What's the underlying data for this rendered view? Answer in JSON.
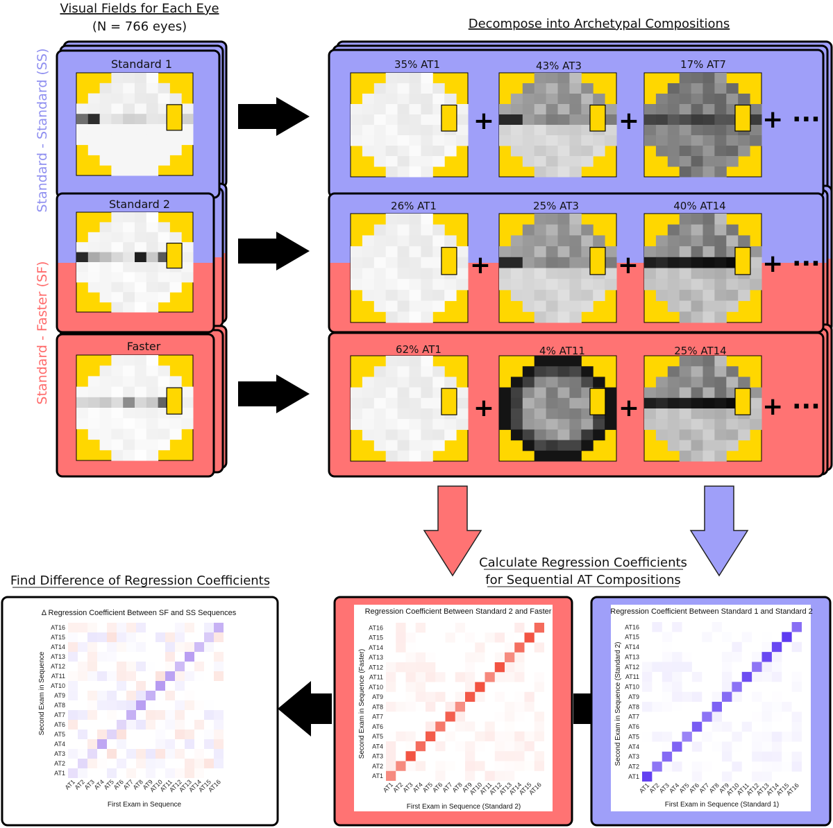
{
  "colors": {
    "ss_blue": "#9f9ff9",
    "sf_red": "#ff7373",
    "field_yellow": "#ffd700",
    "arrow_black": "#000000",
    "heat_red": "#f03a26",
    "heat_blue": "#5530f0"
  },
  "titles": {
    "visual_fields": "Visual Fields for Each Eye",
    "n_eyes": "(N = 766 eyes)",
    "decompose": "Decompose into Archetypal Compositions",
    "calc_line1": "Calculate Regression Coefficients",
    "calc_line2": "for Sequential AT Compositions",
    "find_diff": "Find Difference of Regression Coefficients"
  },
  "side_labels": {
    "ss": "Standard - Standard (SS)",
    "sf": "Standard - Faster (SF)"
  },
  "exams": [
    {
      "label": "Standard 1"
    },
    {
      "label": "Standard 2"
    },
    {
      "label": "Faster"
    }
  ],
  "compositions": [
    {
      "items": [
        "35% AT1",
        "43% AT3",
        "17% AT7"
      ]
    },
    {
      "items": [
        "26% AT1",
        "25% AT3",
        "40% AT14"
      ]
    },
    {
      "items": [
        "62% AT1",
        "4% AT11",
        "25% AT14"
      ]
    }
  ],
  "plus_more": "+ ···",
  "plus": "+",
  "heatmaps": {
    "diff": {
      "title": "Δ Regression Coefficient Between SF and SS Sequences",
      "xlabel": "First Exam in Sequence",
      "ylabel": "Second Exam in Sequence"
    },
    "sf": {
      "title": "Regression Coefficient Between Standard 2 and Faster",
      "xlabel": "First Exam in Sequence (Standard 2)",
      "ylabel": "Second Exam in Sequence (Faster)"
    },
    "ss": {
      "title": "Regression Coefficient Between Standard 1 and Standard 2",
      "xlabel": "First Exam in Sequence (Standard 1)",
      "ylabel": "Second Exam in Sequence (Standard 2)"
    },
    "ticks": [
      "AT1",
      "AT2",
      "AT3",
      "AT4",
      "AT5",
      "AT6",
      "AT7",
      "AT8",
      "AT9",
      "AT10",
      "AT11",
      "AT12",
      "AT13",
      "AT14",
      "AT15",
      "AT16"
    ]
  }
}
